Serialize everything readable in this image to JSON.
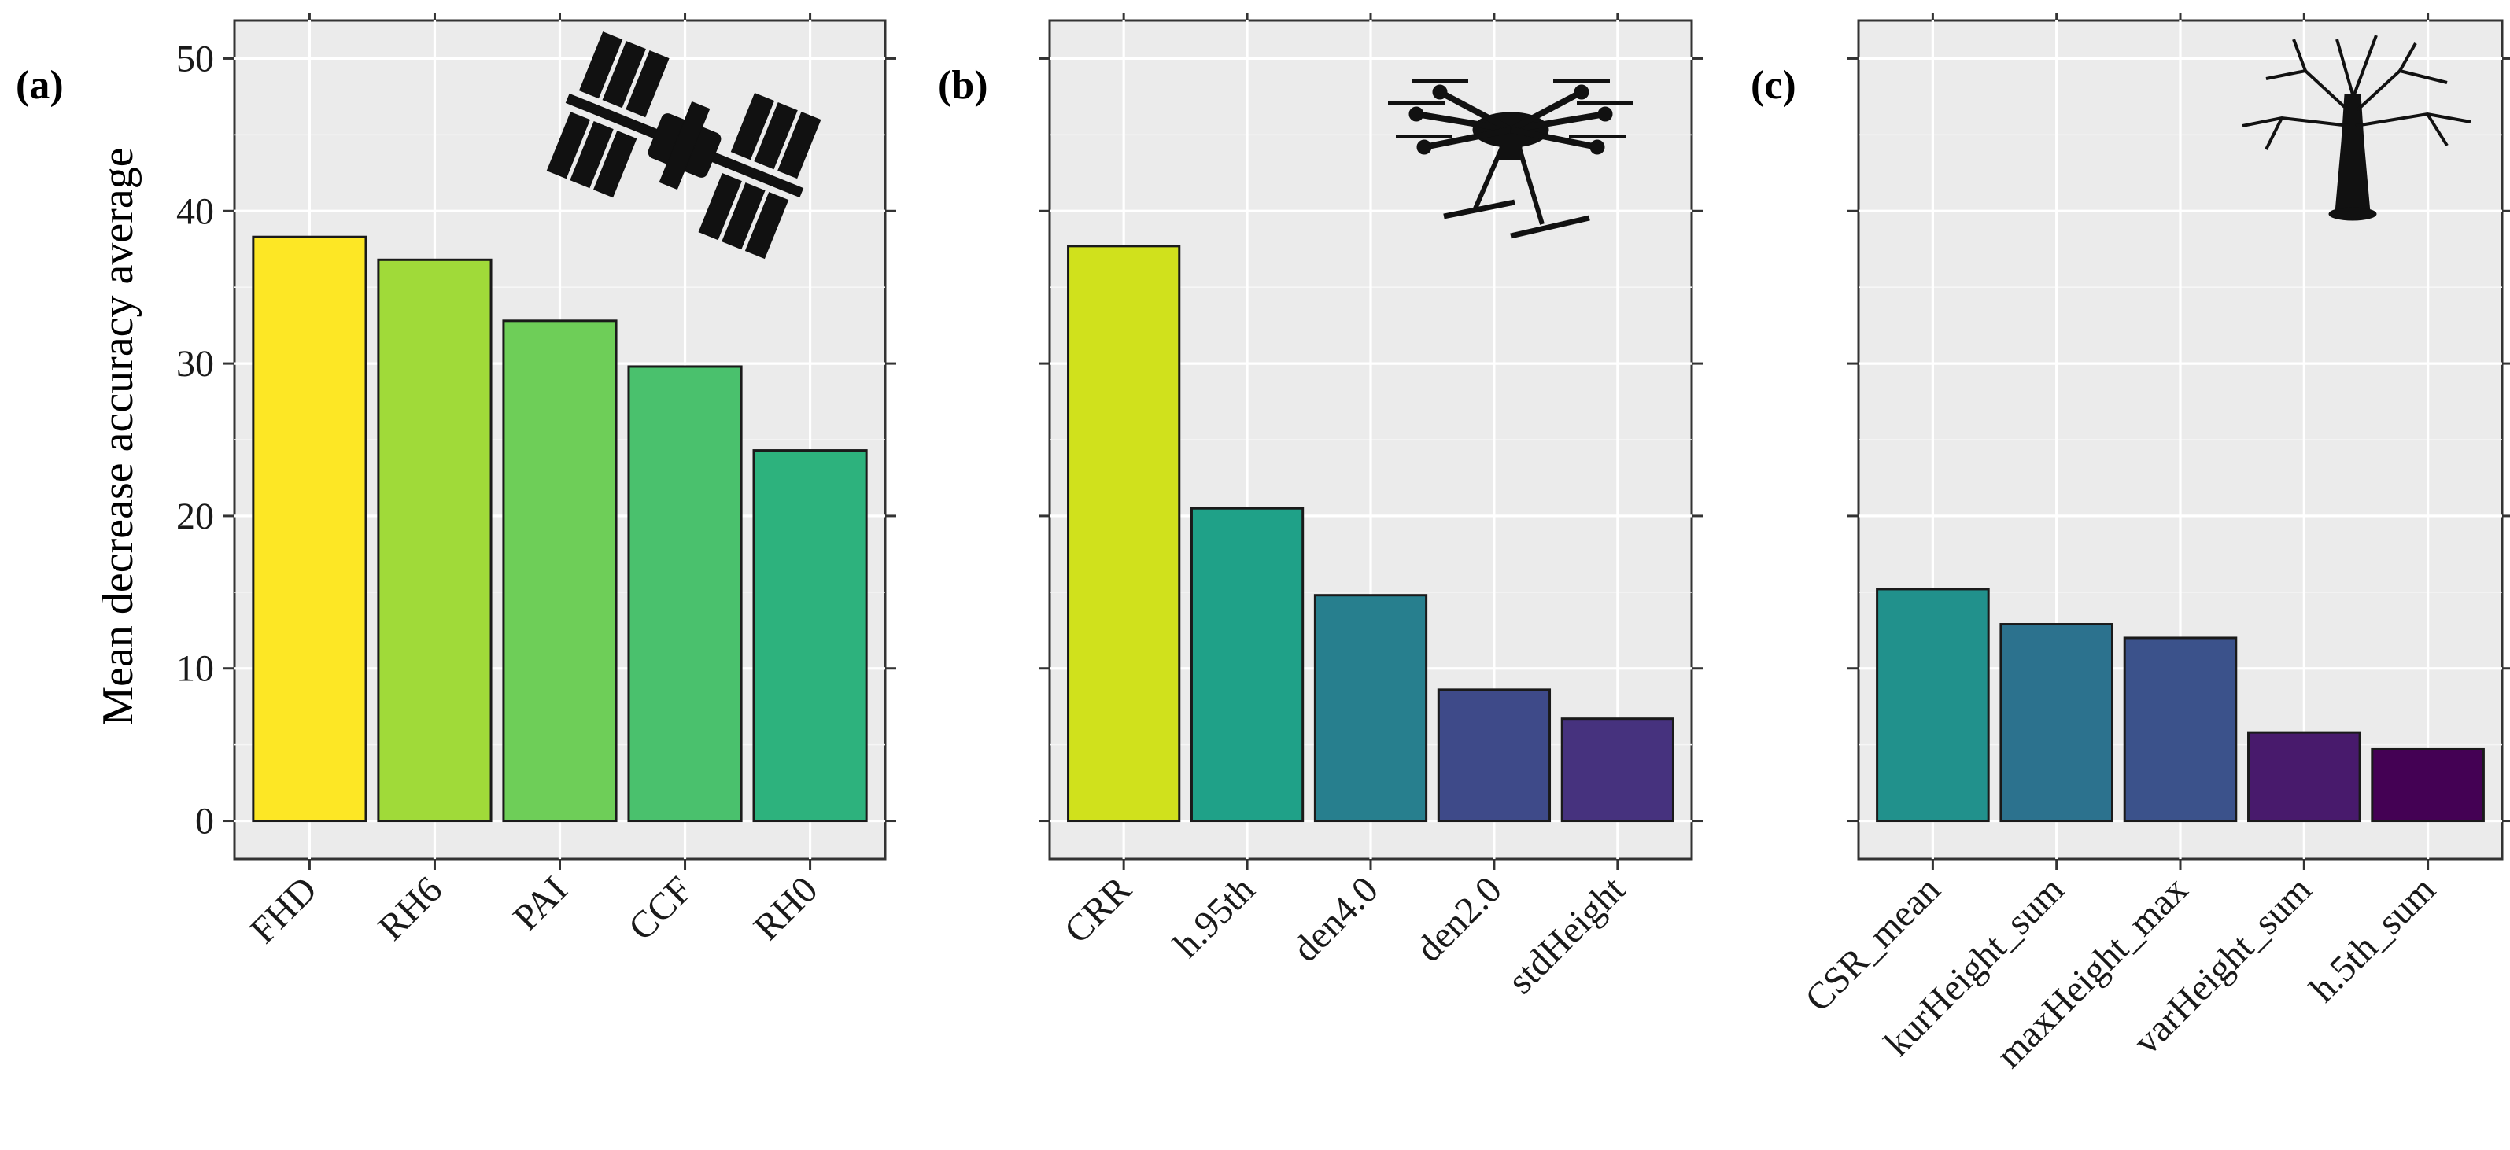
{
  "ylabel": "Mean decrease accuracy average",
  "chart_data": [
    {
      "type": "bar",
      "panel_label": "(a)",
      "icon": "satellite-icon",
      "categories": [
        "FHD",
        "RH6",
        "PAI",
        "CCF",
        "RH0"
      ],
      "values": [
        38.3,
        36.8,
        32.8,
        29.8,
        24.3
      ],
      "colors": [
        "#fde725",
        "#a0da39",
        "#6ece58",
        "#4ac16d",
        "#2db27d"
      ],
      "ylabel": "Mean decrease accuracy average",
      "ylim": [
        -2.5,
        52.5
      ],
      "yticks": [
        0,
        10,
        20,
        30,
        40,
        50
      ]
    },
    {
      "type": "bar",
      "panel_label": "(b)",
      "icon": "drone-icon",
      "categories": [
        "CRR",
        "h.95th",
        "den4.0",
        "den2.0",
        "stdHeight"
      ],
      "values": [
        37.7,
        20.5,
        14.8,
        8.6,
        6.7
      ],
      "colors": [
        "#d0e11c",
        "#1fa188",
        "#277f8e",
        "#3e4a89",
        "#46327e"
      ],
      "ylim": [
        -2.5,
        52.5
      ],
      "yticks": [
        0,
        10,
        20,
        30,
        40,
        50
      ]
    },
    {
      "type": "bar",
      "panel_label": "(c)",
      "icon": "tree-icon",
      "categories": [
        "CSR_mean",
        "kurHeight_sum",
        "maxHeight_max",
        "varHeight_sum",
        "h.5th_sum"
      ],
      "values": [
        15.2,
        12.9,
        12.0,
        5.8,
        4.7
      ],
      "colors": [
        "#21918c",
        "#2c728e",
        "#3b528b",
        "#481a6c",
        "#440154"
      ],
      "ylim": [
        -2.5,
        52.5
      ],
      "yticks": [
        0,
        10,
        20,
        30,
        40,
        50
      ]
    }
  ]
}
